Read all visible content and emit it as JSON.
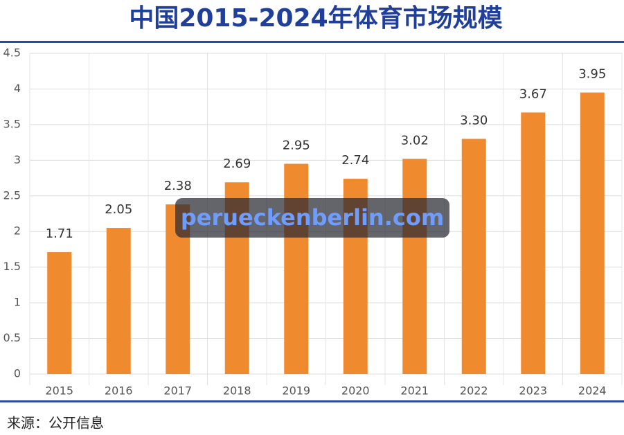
{
  "chart_data": {
    "type": "bar",
    "title": "中国2015-2024年体育市场规模",
    "source": "来源：公开信息",
    "watermark": "perueckenberlin.com",
    "categories": [
      "2015",
      "2016",
      "2017",
      "2018",
      "2019",
      "2020",
      "2021",
      "2022",
      "2023",
      "2024"
    ],
    "values": [
      1.71,
      2.05,
      2.38,
      2.69,
      2.95,
      2.74,
      3.02,
      3.3,
      3.67,
      3.95
    ],
    "value_labels": [
      "1.71",
      "2.05",
      "2.38",
      "2.69",
      "2.95",
      "2.74",
      "3.02",
      "3.30",
      "3.67",
      "3.95"
    ],
    "color": "#ef8a2e",
    "ylim": [
      0,
      4.5
    ],
    "yticks": [
      0,
      0.5,
      1,
      1.5,
      2,
      2.5,
      3,
      3.5,
      4,
      4.5
    ],
    "grid": true
  }
}
